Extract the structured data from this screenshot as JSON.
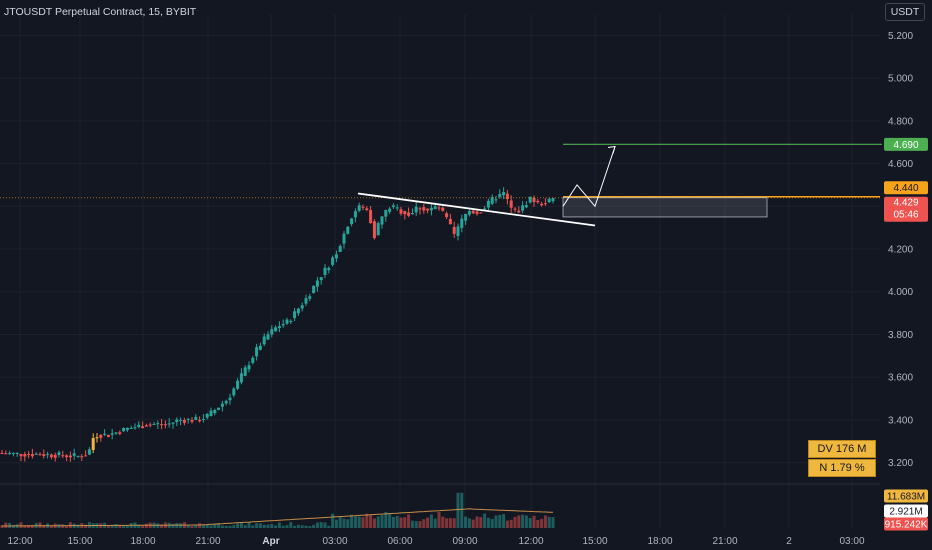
{
  "header": {
    "title": "JTOUSDT Perpetual Contract, 15, BYBIT",
    "currency": "USDT"
  },
  "info_boxes": {
    "dv": "DV 176 M",
    "n": "N 1.79 %"
  },
  "price_labels": {
    "target": "4.690",
    "level": "4.440",
    "last_price": "4.429",
    "countdown": "05:46"
  },
  "volume_labels": {
    "ma": "11.683M",
    "vol2": "2.921M",
    "vol3": "915.242K"
  },
  "colors": {
    "background": "#131722",
    "up": "#26a69a",
    "down": "#ef5350",
    "target": "#4caf50",
    "level": "#f7a21b",
    "highlight": "#f0b73f"
  },
  "chart_data": {
    "type": "candlestick",
    "ylim": [
      3.1,
      5.3
    ],
    "yticks": [
      "5.200",
      "5.000",
      "4.800",
      "4.600",
      "4.400",
      "4.200",
      "4.000",
      "3.800",
      "3.600",
      "3.400",
      "3.200"
    ],
    "xticks": [
      "12:00",
      "15:00",
      "18:00",
      "21:00",
      "Apr",
      "03:00",
      "06:00",
      "09:00",
      "12:00",
      "15:00",
      "18:00",
      "21:00",
      "2",
      "03:00"
    ],
    "price_points": [
      [
        0,
        3.245
      ],
      [
        20,
        3.24
      ],
      [
        40,
        3.24
      ],
      [
        60,
        3.235
      ],
      [
        80,
        3.23
      ],
      [
        90,
        3.24
      ],
      [
        96,
        3.33
      ],
      [
        110,
        3.33
      ],
      [
        130,
        3.36
      ],
      [
        150,
        3.38
      ],
      [
        170,
        3.38
      ],
      [
        180,
        3.4
      ],
      [
        200,
        3.4
      ],
      [
        210,
        3.42
      ],
      [
        220,
        3.46
      ],
      [
        230,
        3.5
      ],
      [
        240,
        3.58
      ],
      [
        250,
        3.66
      ],
      [
        260,
        3.74
      ],
      [
        270,
        3.8
      ],
      [
        280,
        3.84
      ],
      [
        290,
        3.86
      ],
      [
        300,
        3.92
      ],
      [
        310,
        3.98
      ],
      [
        320,
        4.06
      ],
      [
        330,
        4.12
      ],
      [
        340,
        4.2
      ],
      [
        350,
        4.32
      ],
      [
        360,
        4.4
      ],
      [
        370,
        4.38
      ],
      [
        376,
        4.26
      ],
      [
        382,
        4.34
      ],
      [
        392,
        4.4
      ],
      [
        402,
        4.38
      ],
      [
        412,
        4.36
      ],
      [
        420,
        4.4
      ],
      [
        430,
        4.38
      ],
      [
        440,
        4.4
      ],
      [
        450,
        4.33
      ],
      [
        456,
        4.26
      ],
      [
        462,
        4.32
      ],
      [
        470,
        4.38
      ],
      [
        480,
        4.37
      ],
      [
        488,
        4.4
      ],
      [
        496,
        4.44
      ],
      [
        506,
        4.46
      ],
      [
        514,
        4.38
      ],
      [
        522,
        4.38
      ],
      [
        532,
        4.44
      ],
      [
        540,
        4.41
      ],
      [
        548,
        4.42
      ],
      [
        556,
        4.43
      ]
    ],
    "trendline": [
      [
        358,
        4.46
      ],
      [
        595,
        4.31
      ]
    ],
    "target_level": 4.69,
    "target_line": [
      563,
      882
    ],
    "resistance_level": 4.44,
    "zone": {
      "high": 4.44,
      "low": 4.35,
      "x": [
        563,
        767
      ]
    },
    "projection_path": [
      [
        563,
        4.4
      ],
      [
        577,
        4.5
      ],
      [
        595,
        4.4
      ],
      [
        615,
        4.68
      ]
    ],
    "current_price": 4.429
  }
}
